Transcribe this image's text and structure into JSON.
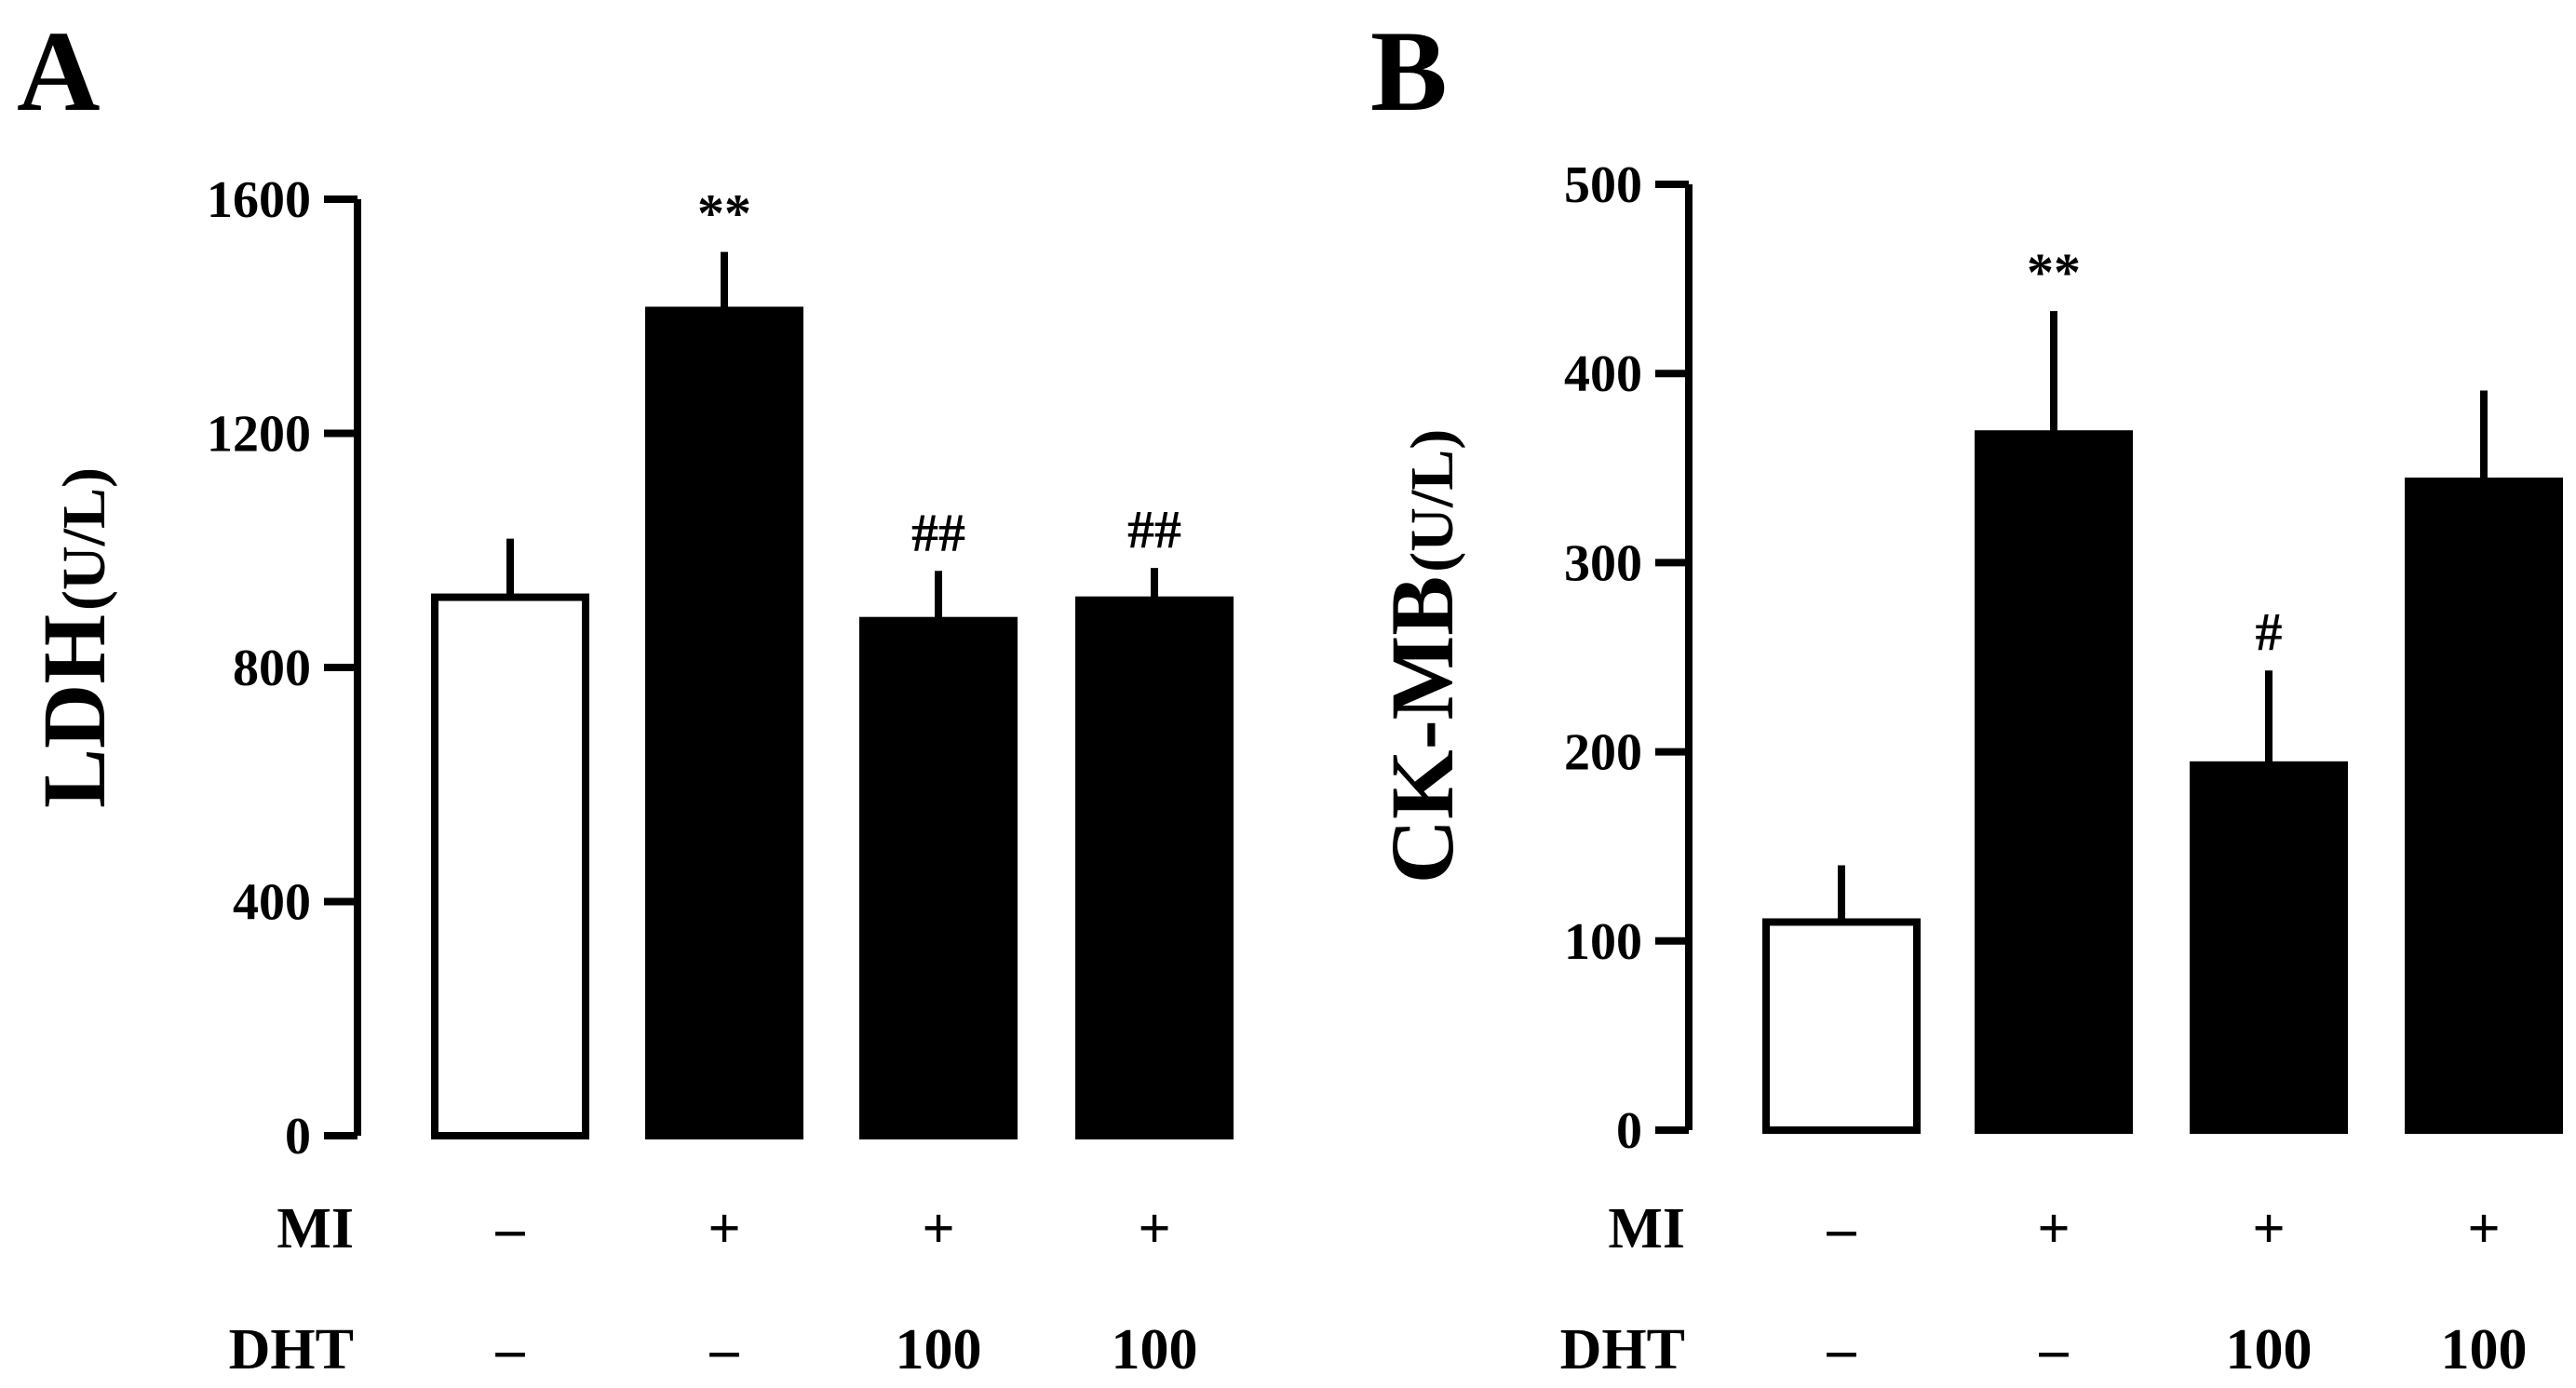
{
  "chart_data": [
    {
      "panel": "A",
      "type": "bar",
      "ylabel": "LDH",
      "yunit": "(U/L)",
      "ylim": [
        0,
        1600
      ],
      "yticks": [
        0,
        400,
        800,
        1200,
        1600
      ],
      "categories": [
        "MI -/DHT -",
        "MI +/DHT -",
        "MI +/DHT 100",
        "MI +/DHT 100"
      ],
      "values": [
        920,
        1410,
        880,
        915
      ],
      "errors": [
        100,
        100,
        85,
        55
      ],
      "fills": [
        "#ffffff",
        "#000000",
        "#000000",
        "#000000"
      ],
      "significance": [
        "",
        "**",
        "##",
        "##"
      ],
      "conditions": {
        "row_labels": [
          "MI",
          "DHT"
        ],
        "MI": [
          "–",
          "+",
          "+",
          "+"
        ],
        "DHT": [
          "–",
          "–",
          "100",
          "100"
        ]
      }
    },
    {
      "panel": "B",
      "type": "bar",
      "ylabel": "CK-MB",
      "yunit": "(U/L)",
      "ylim": [
        0,
        500
      ],
      "yticks": [
        0,
        100,
        200,
        300,
        400,
        500
      ],
      "categories": [
        "MI -/DHT -",
        "MI +/DHT -",
        "MI +/DHT 100",
        "MI +/DHT 100"
      ],
      "values": [
        110,
        368,
        193,
        343
      ],
      "errors": [
        30,
        65,
        50,
        48
      ],
      "fills": [
        "#ffffff",
        "#000000",
        "#000000",
        "#000000"
      ],
      "significance": [
        "",
        "**",
        "#",
        ""
      ],
      "conditions": {
        "row_labels": [
          "MI",
          "DHT"
        ],
        "MI": [
          "–",
          "+",
          "+",
          "+"
        ],
        "DHT": [
          "–",
          "–",
          "100",
          "100"
        ]
      }
    }
  ]
}
